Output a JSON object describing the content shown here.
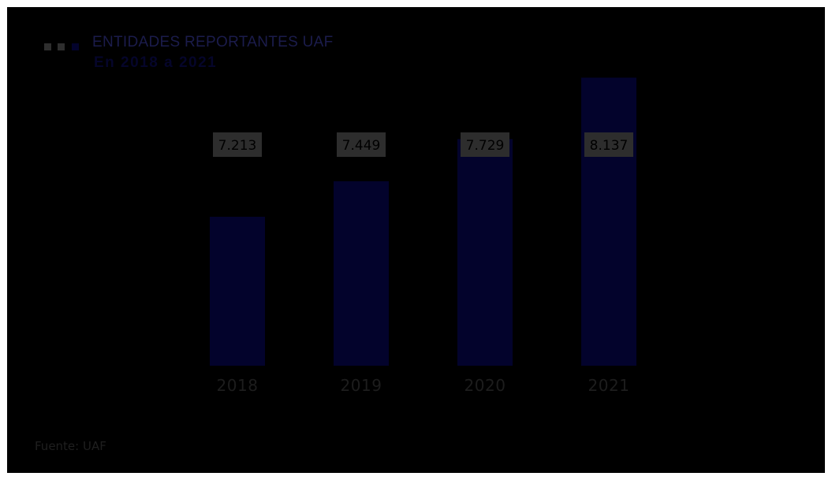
{
  "title": "ENTIDADES REPORTANTES UAF",
  "subtitle": "En 2018 a 2021",
  "source": "Fuente: UAF",
  "colors": {
    "background": "#000000",
    "bar": "#03032c",
    "label_box": "#2d2d2d",
    "legend": [
      "#2e2e2e",
      "#2e2e2e",
      "#03032c"
    ]
  },
  "chart_data": {
    "type": "bar",
    "categories": [
      "2018",
      "2019",
      "2020",
      "2021"
    ],
    "values": [
      7213,
      7449,
      7729,
      8137
    ],
    "value_labels": [
      "7.213",
      "7.449",
      "7.729",
      "8.137"
    ],
    "title": "ENTIDADES REPORTANTES UAF",
    "subtitle": "En 2018 a 2021",
    "xlabel": "",
    "ylabel": "",
    "grid": false,
    "legend": "none"
  }
}
